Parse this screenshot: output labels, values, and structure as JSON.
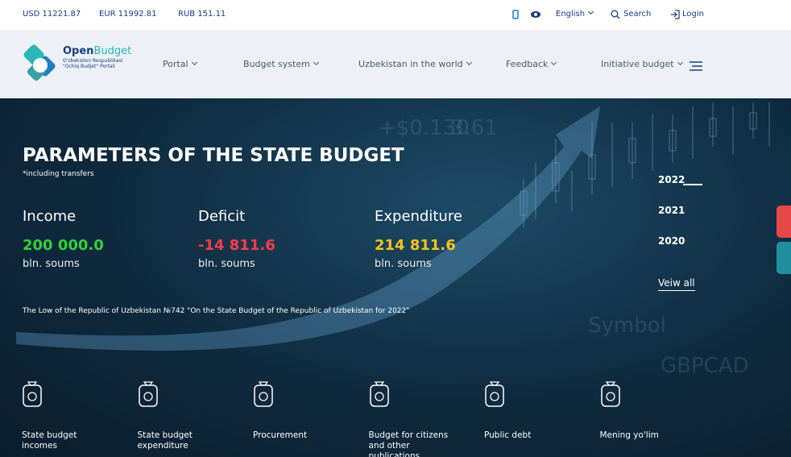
{
  "topbar": {
    "currencies": [
      "USD 11221.87",
      "EUR 11992.81",
      "RUB 151.11"
    ],
    "language": "English",
    "search": "Search",
    "login": "Login"
  },
  "nav": {
    "logo": {
      "open": "Open",
      "budget": "Budget",
      "line1": "O'zbekiston Respublikasi",
      "line2": "\"Ochiq Budjet\" Portali"
    },
    "items": [
      "Portal",
      "Budget system",
      "Uzbekistan in the world",
      "Feedback",
      "Initiative budget"
    ]
  },
  "hero": {
    "title": "PARAMETERS OF THE STATE BUDGET",
    "note": "*including transfers",
    "stats": [
      {
        "label": "Income",
        "value": "200 000.0",
        "unit": "bln. soums"
      },
      {
        "label": "Deficit",
        "value": "-14 811.6",
        "unit": "bln. soums"
      },
      {
        "label": "Expenditure",
        "value": "214 811.6",
        "unit": "bln. soums"
      }
    ],
    "law": "The Low of the Republic of Uzbekistan №742 \"On the State Budget of the Republic of Uzbekistan for 2022\"",
    "years": [
      "2022",
      "2021",
      "2020"
    ],
    "view_all": "Veiw all"
  },
  "tiles": [
    "State budget incomes",
    "State budget expenditure",
    "Procurement",
    "Budget for citizens and other publications",
    "Public debt",
    "Mening yo'lim"
  ]
}
